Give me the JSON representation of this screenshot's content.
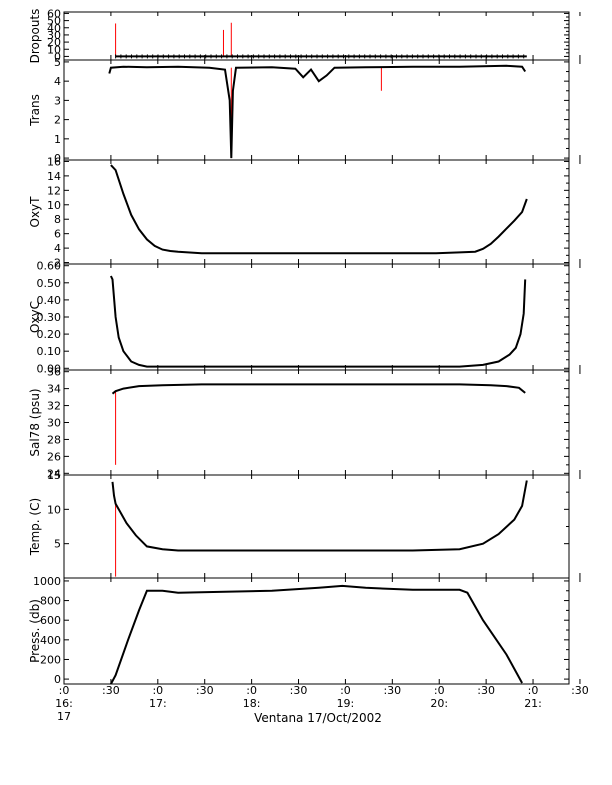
{
  "figure": {
    "caption": "Ventana 17/Oct/2002"
  },
  "time_axis": {
    "range": [
      "16:17",
      "21:40"
    ],
    "ticks": [
      {
        "top": ":0",
        "bottom": "16:",
        "sub": "17",
        "t": "16:17"
      },
      {
        "top": ":30",
        "bottom": "",
        "sub": "",
        "t": "16:47"
      },
      {
        "top": ":0",
        "bottom": "17:",
        "sub": "",
        "t": "17:17"
      },
      {
        "top": ":30",
        "bottom": "",
        "sub": "",
        "t": "17:47"
      },
      {
        "top": ":0",
        "bottom": "18:",
        "sub": "",
        "t": "18:17"
      },
      {
        "top": ":30",
        "bottom": "",
        "sub": "",
        "t": "18:47"
      },
      {
        "top": ":0",
        "bottom": "19:",
        "sub": "",
        "t": "19:17"
      },
      {
        "top": ":30",
        "bottom": "",
        "sub": "",
        "t": "19:47"
      },
      {
        "top": ":0",
        "bottom": "20:",
        "sub": "",
        "t": "20:17"
      },
      {
        "top": ":30",
        "bottom": "",
        "sub": "",
        "t": "20:47"
      },
      {
        "top": ":0",
        "bottom": "21:",
        "sub": "",
        "t": "21:17"
      },
      {
        "top": ":30",
        "bottom": "",
        "sub": "",
        "t": "21:47"
      }
    ]
  },
  "chart_data": [
    {
      "type": "line",
      "ylabel": "Dropouts",
      "ylim": [
        -5,
        62
      ],
      "yticks": [
        0,
        10,
        20,
        30,
        40,
        50,
        60
      ],
      "yticklabels": [
        "0",
        "10",
        "20",
        "30",
        "40",
        "50",
        "60"
      ],
      "series": [
        {
          "color": "#000000",
          "x": [
            "16:50",
            "21:13"
          ],
          "y": [
            0,
            0
          ]
        }
      ],
      "spikes": [
        {
          "color": "#ff0000",
          "x": [
            "16:50",
            "17:59",
            "18:04"
          ],
          "y": [
            46,
            37,
            47
          ],
          "base": 0
        }
      ]
    },
    {
      "type": "line",
      "ylabel": "Trans",
      "ylim": [
        -0.1,
        5.1
      ],
      "yticks": [
        0,
        1,
        2,
        3,
        4,
        5
      ],
      "yticklabels": [
        "0",
        "1",
        "2",
        "3",
        "4",
        "5"
      ],
      "series": [
        {
          "color": "#000000",
          "x": [
            "16:46",
            "16:47",
            "16:55",
            "17:10",
            "17:30",
            "17:50",
            "18:00",
            "18:03",
            "18:04",
            "18:05",
            "18:07",
            "18:30",
            "18:45",
            "18:50",
            "18:55",
            "19:00",
            "19:05",
            "19:10",
            "19:30",
            "20:00",
            "20:30",
            "21:00",
            "21:10",
            "21:12"
          ],
          "y": [
            4.4,
            4.7,
            4.75,
            4.72,
            4.75,
            4.7,
            4.6,
            3.0,
            0.0,
            3.5,
            4.7,
            4.72,
            4.65,
            4.2,
            4.6,
            4.0,
            4.3,
            4.7,
            4.72,
            4.75,
            4.75,
            4.8,
            4.75,
            4.5
          ]
        }
      ],
      "spikes": [
        {
          "color": "#ff0000",
          "x": [
            "18:04",
            "19:40"
          ],
          "y": [
            0.0,
            3.5
          ],
          "base": 4.7
        }
      ]
    },
    {
      "type": "line",
      "ylabel": "OxyT",
      "ylim": [
        1.8,
        16.2
      ],
      "yticks": [
        2,
        4,
        6,
        8,
        10,
        12,
        14,
        16
      ],
      "yticklabels": [
        "2",
        "4",
        "6",
        "8",
        "10",
        "12",
        "14",
        "16"
      ],
      "series": [
        {
          "color": "#000000",
          "x": [
            "16:47",
            "16:50",
            "16:55",
            "17:00",
            "17:05",
            "17:10",
            "17:15",
            "17:20",
            "17:25",
            "17:30",
            "17:45",
            "18:30",
            "19:30",
            "20:00",
            "20:15",
            "20:30",
            "20:40",
            "20:45",
            "20:50",
            "20:55",
            "21:00",
            "21:05",
            "21:10",
            "21:13"
          ],
          "y": [
            15.5,
            14.8,
            11.5,
            8.6,
            6.6,
            5.2,
            4.3,
            3.8,
            3.6,
            3.5,
            3.3,
            3.3,
            3.3,
            3.3,
            3.3,
            3.4,
            3.5,
            3.9,
            4.6,
            5.6,
            6.7,
            7.8,
            9.0,
            10.8
          ]
        }
      ]
    },
    {
      "type": "line",
      "ylabel": "OxyC",
      "ylim": [
        -0.01,
        0.61
      ],
      "yticks": [
        0.0,
        0.1,
        0.2,
        0.3,
        0.4,
        0.5,
        0.6
      ],
      "yticklabels": [
        "0.00",
        "0.10",
        "0.20",
        "0.30",
        "0.40",
        "0.50",
        "0.60"
      ],
      "series": [
        {
          "color": "#000000",
          "x": [
            "16:47",
            "16:48",
            "16:50",
            "16:52",
            "16:55",
            "17:00",
            "17:05",
            "17:10",
            "17:30",
            "18:30",
            "19:30",
            "20:30",
            "20:45",
            "20:55",
            "21:02",
            "21:06",
            "21:09",
            "21:11",
            "21:12"
          ],
          "y": [
            0.54,
            0.52,
            0.3,
            0.18,
            0.1,
            0.04,
            0.02,
            0.01,
            0.01,
            0.01,
            0.01,
            0.01,
            0.02,
            0.04,
            0.08,
            0.12,
            0.2,
            0.32,
            0.52
          ]
        }
      ]
    },
    {
      "type": "line",
      "ylabel": "Sal78 (psu)",
      "ylim": [
        23.8,
        36.2
      ],
      "yticks": [
        24,
        26,
        28,
        30,
        32,
        34,
        36
      ],
      "yticklabels": [
        "24",
        "26",
        "28",
        "30",
        "32",
        "34",
        "36"
      ],
      "series": [
        {
          "color": "#000000",
          "x": [
            "16:48",
            "16:50",
            "16:55",
            "17:05",
            "17:20",
            "17:45",
            "18:30",
            "19:30",
            "20:30",
            "20:50",
            "21:00",
            "21:08",
            "21:12"
          ],
          "y": [
            33.4,
            33.7,
            34.0,
            34.3,
            34.4,
            34.5,
            34.5,
            34.5,
            34.5,
            34.4,
            34.3,
            34.1,
            33.5
          ]
        }
      ],
      "spikes": [
        {
          "color": "#ff0000",
          "x": [
            "16:50"
          ],
          "y": [
            25.0
          ],
          "base": 33.7
        }
      ]
    },
    {
      "type": "line",
      "ylabel": "Temp. (C)",
      "ylim": [
        0,
        15
      ],
      "yticks": [
        5,
        10,
        15
      ],
      "yticklabels": [
        "5",
        "10",
        "15"
      ],
      "series": [
        {
          "color": "#000000",
          "x": [
            "16:48",
            "16:49",
            "16:50",
            "16:52",
            "16:57",
            "17:03",
            "17:10",
            "17:20",
            "17:30",
            "18:30",
            "19:30",
            "20:00",
            "20:30",
            "20:45",
            "20:55",
            "21:05",
            "21:10",
            "21:13"
          ],
          "y": [
            14.0,
            12.0,
            10.8,
            10.0,
            8.0,
            6.2,
            4.6,
            4.2,
            4.0,
            4.0,
            4.0,
            4.0,
            4.2,
            5.0,
            6.4,
            8.5,
            10.5,
            14.2
          ]
        }
      ],
      "spikes": [
        {
          "color": "#ff0000",
          "x": [
            "16:50"
          ],
          "y": [
            0.2
          ],
          "base": 10.8
        }
      ]
    },
    {
      "type": "line",
      "ylabel": "Press. (db)",
      "ylim": [
        -50,
        1030
      ],
      "yticks": [
        0,
        200,
        400,
        600,
        800,
        1000
      ],
      "yticklabels": [
        "0",
        "200",
        "400",
        "600",
        "800",
        "1000"
      ],
      "series": [
        {
          "color": "#000000",
          "x": [
            "16:47",
            "16:50",
            "16:58",
            "17:05",
            "17:10",
            "17:20",
            "17:30",
            "18:00",
            "18:30",
            "19:00",
            "19:15",
            "19:30",
            "20:00",
            "20:30",
            "20:35",
            "20:45",
            "21:00",
            "21:10"
          ],
          "y": [
            -50,
            40,
            400,
            700,
            900,
            900,
            880,
            890,
            900,
            930,
            950,
            930,
            910,
            910,
            880,
            600,
            250,
            -40
          ]
        }
      ]
    }
  ]
}
